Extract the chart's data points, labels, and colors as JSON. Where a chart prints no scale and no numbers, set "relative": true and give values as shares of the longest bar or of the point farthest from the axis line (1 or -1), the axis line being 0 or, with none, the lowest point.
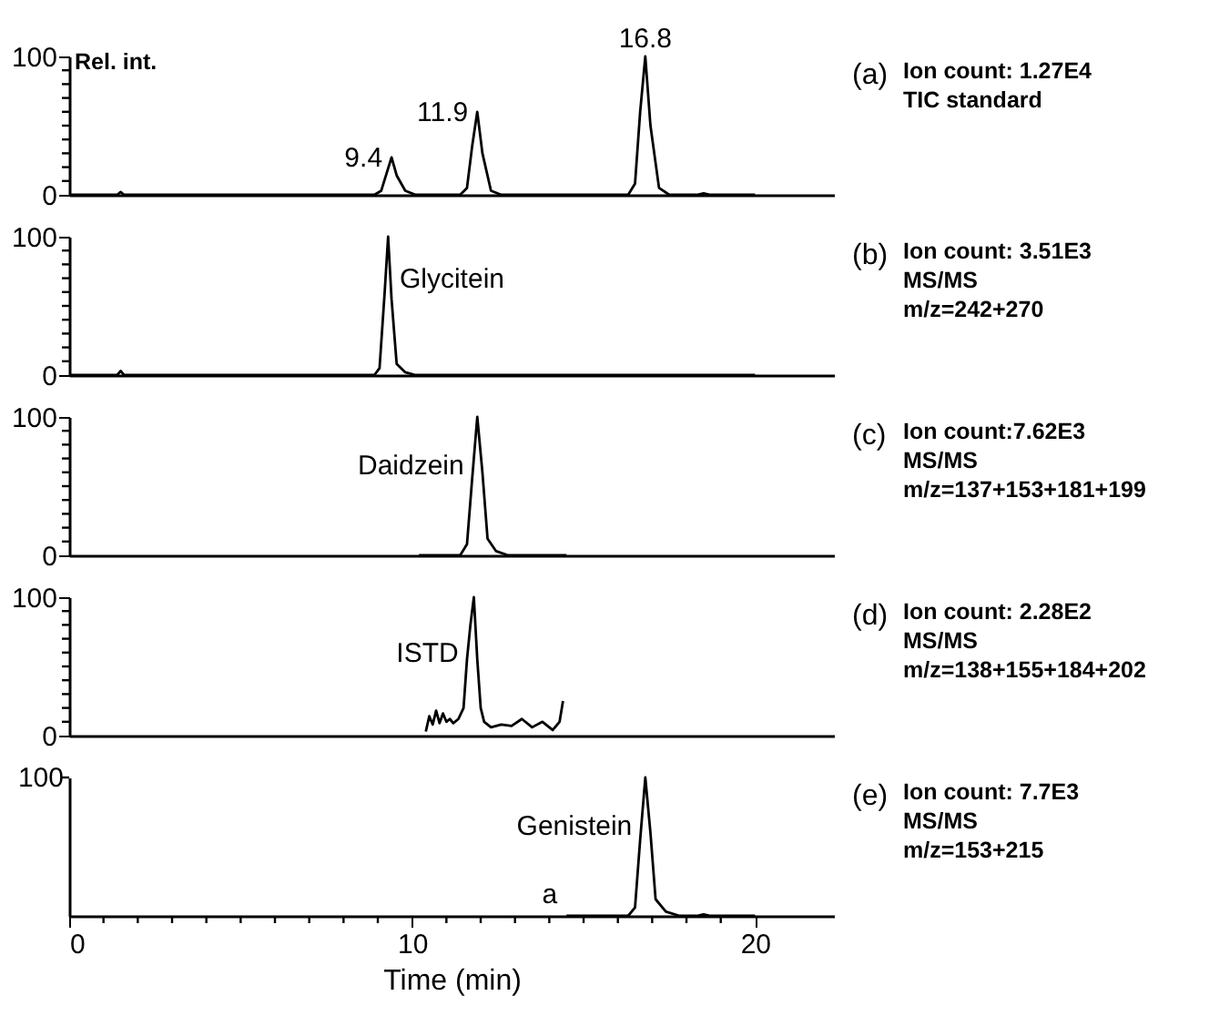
{
  "chart_data": [
    {
      "type": "line",
      "ylabel": "Rel. int.",
      "xlim": [
        0,
        22.3
      ],
      "ylim": [
        0,
        100
      ],
      "tick_labels": "y",
      "line_style": "solid",
      "marker": "none",
      "grid": false,
      "legend": false,
      "yticks": [
        0,
        {
          "value": 10,
          "label": null
        },
        {
          "value": 20,
          "label": null
        },
        {
          "value": 30,
          "label": null
        },
        {
          "value": 40,
          "label": null
        },
        {
          "value": 50,
          "label": null
        },
        {
          "value": 60,
          "label": null
        },
        {
          "value": 70,
          "label": null
        },
        {
          "value": 80,
          "label": null
        },
        {
          "value": 90,
          "label": null
        },
        100
      ],
      "series": [
        {
          "color": "#000000",
          "x": [
            0,
            1.4,
            1.5,
            1.6,
            8.9,
            9.1,
            9.25,
            9.4,
            9.55,
            9.8,
            10.1,
            11.4,
            11.6,
            11.75,
            11.9,
            12.05,
            12.3,
            12.6,
            16.3,
            16.5,
            16.65,
            16.8,
            16.95,
            17.2,
            17.5,
            18.3,
            18.5,
            18.7,
            20
          ],
          "values": [
            0,
            0,
            2,
            0,
            0,
            3,
            15,
            27,
            14,
            3,
            0,
            0,
            5,
            35,
            60,
            30,
            3,
            0,
            0,
            8,
            60,
            100,
            50,
            5,
            0,
            0,
            1,
            0,
            0
          ]
        }
      ],
      "annotations": [
        "(a)",
        "Ion count: 1.27E4",
        "TIC standard",
        {
          "text": "9.4",
          "x": 9.4,
          "y": 27
        },
        {
          "text": "11.9",
          "x": 11.9,
          "y": 60
        },
        {
          "text": "16.8",
          "x": 16.8,
          "y": 100
        }
      ]
    },
    {
      "type": "line",
      "xlim": [
        0,
        22.3
      ],
      "ylim": [
        0,
        100
      ],
      "tick_labels": "y",
      "line_style": "solid",
      "marker": "none",
      "grid": false,
      "legend": false,
      "yticks": [
        0,
        {
          "value": 10,
          "label": null
        },
        {
          "value": 20,
          "label": null
        },
        {
          "value": 30,
          "label": null
        },
        {
          "value": 40,
          "label": null
        },
        {
          "value": 50,
          "label": null
        },
        {
          "value": 60,
          "label": null
        },
        {
          "value": 70,
          "label": null
        },
        {
          "value": 80,
          "label": null
        },
        {
          "value": 90,
          "label": null
        },
        100
      ],
      "series": [
        {
          "color": "#000000",
          "x": [
            0,
            1.4,
            1.5,
            1.6,
            8.9,
            9.05,
            9.2,
            9.3,
            9.4,
            9.55,
            9.8,
            10.1,
            20
          ],
          "values": [
            0,
            0,
            3,
            0,
            0,
            5,
            60,
            100,
            55,
            8,
            2,
            0,
            0
          ]
        }
      ],
      "annotations": [
        "(b)",
        "Ion count: 3.51E3",
        "MS/MS",
        "m/z=242+270",
        {
          "text": "Glycitein",
          "x": 9.37,
          "y": 70
        }
      ]
    },
    {
      "type": "line",
      "xlim": [
        0,
        22.3
      ],
      "ylim": [
        0,
        100
      ],
      "tick_labels": "y",
      "line_style": "solid",
      "marker": "none",
      "grid": false,
      "legend": false,
      "yticks": [
        0,
        {
          "value": 10,
          "label": null
        },
        {
          "value": 20,
          "label": null
        },
        {
          "value": 30,
          "label": null
        },
        {
          "value": 40,
          "label": null
        },
        {
          "value": 50,
          "label": null
        },
        {
          "value": 60,
          "label": null
        },
        {
          "value": 70,
          "label": null
        },
        {
          "value": 80,
          "label": null
        },
        {
          "value": 90,
          "label": null
        },
        100
      ],
      "series": [
        {
          "color": "#000000",
          "x": [
            10.2,
            11.4,
            11.6,
            11.75,
            11.9,
            12.05,
            12.2,
            12.45,
            12.8,
            14.5
          ],
          "values": [
            0,
            0,
            8,
            55,
            100,
            60,
            12,
            3,
            0,
            0
          ]
        }
      ],
      "annotations": [
        "(c)",
        "Ion count:7.62E3",
        "MS/MS",
        "m/z=137+153+181+199",
        {
          "text": "Daidzein",
          "x": 11.78,
          "y": 65
        }
      ]
    },
    {
      "type": "line",
      "xlim": [
        0,
        22.3
      ],
      "ylim": [
        0,
        100
      ],
      "tick_labels": "y",
      "line_style": "solid",
      "marker": "none",
      "grid": false,
      "legend": false,
      "yticks": [
        0,
        {
          "value": 10,
          "label": null
        },
        {
          "value": 20,
          "label": null
        },
        {
          "value": 30,
          "label": null
        },
        {
          "value": 40,
          "label": null
        },
        {
          "value": 50,
          "label": null
        },
        {
          "value": 60,
          "label": null
        },
        {
          "value": 70,
          "label": null
        },
        {
          "value": 80,
          "label": null
        },
        {
          "value": 90,
          "label": null
        },
        100
      ],
      "series": [
        {
          "color": "#000000",
          "x": [
            10.4,
            10.5,
            10.6,
            10.7,
            10.8,
            10.9,
            11.0,
            11.1,
            11.2,
            11.35,
            11.5,
            11.6,
            11.7,
            11.8,
            11.9,
            12.0,
            12.1,
            12.3,
            12.6,
            12.9,
            13.2,
            13.5,
            13.8,
            14.1,
            14.3,
            14.4
          ],
          "values": [
            3,
            14,
            8,
            18,
            9,
            16,
            10,
            12,
            9,
            12,
            20,
            55,
            80,
            100,
            55,
            20,
            10,
            6,
            8,
            7,
            12,
            6,
            10,
            4,
            10,
            25
          ]
        }
      ],
      "annotations": [
        "(d)",
        "Ion count: 2.28E2",
        "MS/MS",
        "m/z=138+155+184+202",
        {
          "text": "ISTD",
          "x": 11.62,
          "y": 60
        }
      ]
    },
    {
      "type": "line",
      "relative": true,
      "xlabel": "Time (min)",
      "xlim": [
        0,
        22.3
      ],
      "line_style": "solid",
      "marker": "none",
      "grid": false,
      "legend": false,
      "xticks": [
        0,
        {
          "value": 1,
          "label": null
        },
        {
          "value": 2,
          "label": null
        },
        {
          "value": 3,
          "label": null
        },
        {
          "value": 4,
          "label": null
        },
        {
          "value": 5,
          "label": null
        },
        {
          "value": 6,
          "label": null
        },
        {
          "value": 7,
          "label": null
        },
        {
          "value": 8,
          "label": null
        },
        {
          "value": 9,
          "label": null
        },
        10,
        {
          "value": 11,
          "label": null
        },
        {
          "value": 12,
          "label": null
        },
        {
          "value": 13,
          "label": null
        },
        {
          "value": 14,
          "label": null
        },
        {
          "value": 15,
          "label": null
        },
        {
          "value": 16,
          "label": null
        },
        {
          "value": 17,
          "label": null
        },
        {
          "value": 18,
          "label": null
        },
        {
          "value": 19,
          "label": null
        },
        20
      ],
      "series": [
        {
          "color": "#000000",
          "x": [
            14.5,
            16.3,
            16.5,
            16.65,
            16.8,
            16.95,
            17.1,
            17.4,
            17.8,
            18.3,
            18.5,
            18.7,
            20
          ],
          "values": [
            0,
            0,
            0.06,
            0.55,
            1,
            0.6,
            0.12,
            0.03,
            0,
            0,
            0.01,
            0,
            0
          ]
        }
      ],
      "annotations": [
        "100",
        "(e)",
        "Ion count: 7.7E3",
        "MS/MS",
        "m/z=153+215",
        {
          "text": "Genistein",
          "x": 16.68,
          "y": 0.65
        },
        {
          "text": "a",
          "x": 14.5,
          "y": 0
        }
      ]
    }
  ]
}
